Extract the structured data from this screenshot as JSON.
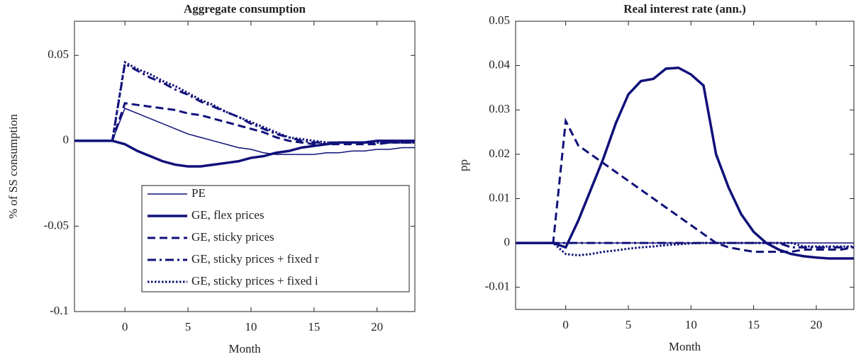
{
  "chart_data": [
    {
      "type": "line",
      "title": "Aggregate consumption",
      "xlabel": "Month",
      "ylabel": "% of SS consumption",
      "xlim": [
        -4,
        23
      ],
      "ylim": [
        -0.1,
        0.07
      ],
      "xticks": [
        0,
        5,
        10,
        15,
        20
      ],
      "yticks": [
        -0.1,
        -0.05,
        0,
        0.05
      ],
      "legend": "southeast",
      "x": [
        -4,
        -3,
        -2,
        -1,
        0,
        1,
        2,
        3,
        4,
        5,
        6,
        7,
        8,
        9,
        10,
        11,
        12,
        13,
        14,
        15,
        16,
        17,
        18,
        19,
        20,
        21,
        22,
        23
      ],
      "series": [
        {
          "name": "PE",
          "color": "#10107a",
          "style": "thin",
          "values": [
            0,
            0,
            0,
            0,
            0.019,
            0.016,
            0.013,
            0.01,
            0.007,
            0.004,
            0.002,
            0,
            -0.002,
            -0.004,
            -0.005,
            -0.007,
            -0.008,
            -0.008,
            -0.008,
            -0.008,
            -0.007,
            -0.007,
            -0.006,
            -0.006,
            -0.005,
            -0.005,
            -0.004,
            -0.004
          ]
        },
        {
          "name": "GE, flex prices",
          "color": "#10107a",
          "style": "solid",
          "values": [
            0,
            0,
            0,
            0,
            -0.002,
            -0.006,
            -0.009,
            -0.012,
            -0.014,
            -0.015,
            -0.015,
            -0.014,
            -0.013,
            -0.012,
            -0.01,
            -0.009,
            -0.007,
            -0.006,
            -0.004,
            -0.003,
            -0.002,
            -0.001,
            -0.001,
            -0.001,
            0,
            0,
            0,
            0
          ]
        },
        {
          "name": "GE, sticky prices",
          "color": "#10107a",
          "style": "dashed",
          "values": [
            0,
            0,
            0,
            0,
            0.022,
            0.021,
            0.02,
            0.019,
            0.018,
            0.016,
            0.015,
            0.013,
            0.011,
            0.009,
            0.007,
            0.005,
            0.002,
            0,
            -0.001,
            -0.002,
            -0.002,
            -0.002,
            -0.002,
            -0.002,
            -0.002,
            -0.001,
            -0.001,
            -0.001
          ]
        },
        {
          "name": "GE, sticky prices + fixed r",
          "color": "#10107a",
          "style": "dashdot",
          "values": [
            0,
            0,
            0,
            0,
            0.045,
            0.041,
            0.037,
            0.034,
            0.03,
            0.027,
            0.023,
            0.02,
            0.017,
            0.014,
            0.01,
            0.007,
            0.004,
            0.002,
            0,
            -0.001,
            -0.001,
            -0.001,
            -0.001,
            -0.001,
            -0.001,
            -0.001,
            -0.001,
            -0.001
          ]
        },
        {
          "name": "GE, sticky prices + fixed i",
          "color": "#10107a",
          "style": "dotted",
          "values": [
            0,
            0,
            0,
            0,
            0.046,
            0.042,
            0.039,
            0.035,
            0.032,
            0.028,
            0.024,
            0.021,
            0.017,
            0.014,
            0.011,
            0.008,
            0.005,
            0.002,
            0.001,
            0,
            -0.001,
            -0.001,
            -0.001,
            -0.001,
            -0.001,
            -0.001,
            -0.001,
            -0.001
          ]
        }
      ]
    },
    {
      "type": "line",
      "title": "Real interest rate (ann.)",
      "xlabel": "Month",
      "ylabel": "pp",
      "xlim": [
        -4,
        23
      ],
      "ylim": [
        -0.015,
        0.05
      ],
      "xticks": [
        0,
        5,
        10,
        15,
        20
      ],
      "yticks": [
        -0.01,
        0,
        0.01,
        0.02,
        0.03,
        0.04,
        0.05
      ],
      "x": [
        -4,
        -3,
        -2,
        -1,
        0,
        1,
        2,
        3,
        4,
        5,
        6,
        7,
        8,
        9,
        10,
        11,
        12,
        13,
        14,
        15,
        16,
        17,
        18,
        19,
        20,
        21,
        22,
        23
      ],
      "series": [
        {
          "color": "#10107a",
          "style": "thin",
          "values": [
            0,
            0,
            0,
            0,
            0,
            0,
            0,
            0,
            0,
            0,
            0,
            0,
            0,
            0,
            0,
            0,
            0,
            0,
            0,
            0,
            0,
            0,
            0,
            0,
            0,
            0,
            0,
            0
          ]
        },
        {
          "color": "#10107a",
          "style": "solid",
          "values": [
            0,
            0,
            0,
            0,
            -0.001,
            0.005,
            0.012,
            0.019,
            0.027,
            0.0335,
            0.0365,
            0.037,
            0.0393,
            0.0395,
            0.038,
            0.0355,
            0.02,
            0.0125,
            0.0065,
            0.0025,
            0,
            -0.0015,
            -0.0025,
            -0.003,
            -0.0033,
            -0.0035,
            -0.0035,
            -0.0035
          ]
        },
        {
          "color": "#10107a",
          "style": "dashed",
          "values": [
            0,
            0,
            0,
            0,
            0.0275,
            0.022,
            0.02,
            0.018,
            0.016,
            0.014,
            0.012,
            0.01,
            0.008,
            0.006,
            0.004,
            0.002,
            0,
            -0.001,
            -0.0015,
            -0.002,
            -0.002,
            -0.002,
            -0.002,
            -0.0015,
            -0.0015,
            -0.0015,
            -0.0015,
            -0.001
          ]
        },
        {
          "color": "#10107a",
          "style": "dashdot",
          "values": [
            0,
            0,
            0,
            0,
            0,
            0,
            0,
            0,
            0,
            0,
            0,
            0,
            0,
            0,
            0,
            0,
            0,
            0,
            0,
            0,
            0,
            0,
            -0.001,
            -0.001,
            -0.001,
            -0.001,
            -0.001,
            -0.001
          ]
        },
        {
          "color": "#10107a",
          "style": "dotted",
          "values": [
            0,
            0,
            0,
            0,
            -0.0025,
            -0.0028,
            -0.0025,
            -0.002,
            -0.0017,
            -0.0013,
            -0.001,
            -0.0008,
            -0.0005,
            -0.0003,
            -0.0001,
            0,
            0,
            0,
            0,
            0,
            0,
            0,
            0,
            -0.0008,
            -0.0008,
            -0.0008,
            -0.0008,
            -0.0008
          ]
        }
      ]
    }
  ]
}
